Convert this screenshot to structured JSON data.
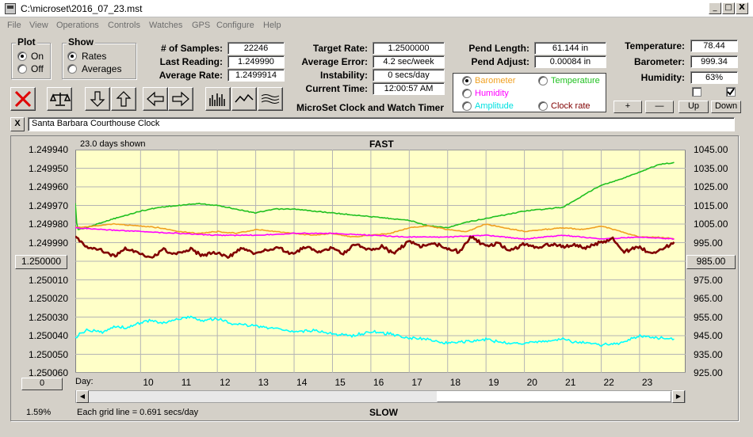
{
  "window": {
    "title": "C:\\microset\\2016_07_23.mst",
    "min": "_",
    "max": "□",
    "close": "X"
  },
  "menu": [
    "File",
    "View",
    "Operations",
    "Controls",
    "Watches",
    "GPS",
    "Configure",
    "Help"
  ],
  "plot_group": {
    "label": "Plot",
    "on": "On",
    "off": "Off"
  },
  "show_group": {
    "label": "Show",
    "rates": "Rates",
    "averages": "Averages"
  },
  "stats": {
    "samples_label": "# of Samples:",
    "samples": "22246",
    "last_label": "Last Reading:",
    "last": "1.249990",
    "avgrate_label": "Average Rate:",
    "avgrate": "1.2499914",
    "target_label": "Target Rate:",
    "target": "1.2500000",
    "avgerr_label": "Average Error:",
    "avgerr": "4.2 sec/week",
    "instab_label": "Instability:",
    "instab": "0 secs/day",
    "time_label": "Current Time:",
    "time": "12:00:57 AM",
    "pendlen_label": "Pend Length:",
    "pendlen": "61.144 in",
    "pendadj_label": "Pend Adjust:",
    "pendadj": "0.00084 in",
    "temp_label": "Temperature:",
    "temp": "78.44",
    "baro_label": "Barometer:",
    "baro": "999.34",
    "hum_label": "Humidity:",
    "hum": "63%"
  },
  "app_name": "MicroSet Clock and Watch Timer",
  "sensor_options": {
    "barometer": "Barometer",
    "temperature": "Temperature",
    "humidity": "Humidity",
    "amplitude": "Amplitude",
    "clockrate": "Clock rate"
  },
  "scale_buttons": {
    "plus": "+",
    "minus": "—",
    "up": "Up",
    "down": "Down"
  },
  "clock_name": "Santa Barbara Courthouse Clock",
  "clear_label": "X",
  "colors": {
    "barometer": "#f0a020",
    "temperature": "#20c020",
    "humidity": "#ff00ff",
    "amplitude": "#00ffff",
    "clockrate": "#800000"
  },
  "chart": {
    "days_shown": "23.0 days shown",
    "fast": "FAST",
    "slow": "SLOW",
    "grid_note": "Each grid line = 0.691 secs/day",
    "percent": "1.59%",
    "center_button": "1.250000",
    "right_center_button": "985.00",
    "bottom_left_button": "0",
    "day_label": "Day:"
  },
  "chart_data": {
    "type": "line",
    "left_axis": {
      "ticks": [
        "1.249940",
        "1.249950",
        "1.249960",
        "1.249970",
        "1.249980",
        "1.249990",
        "1.250000",
        "1.250010",
        "1.250020",
        "1.250030",
        "1.250040",
        "1.250050",
        "1.250060"
      ],
      "range": [
        1.24994,
        1.25006
      ]
    },
    "right_axis": {
      "ticks": [
        "1045.00",
        "1035.00",
        "1025.00",
        "1015.00",
        "1005.00",
        "995.00",
        "985.00",
        "975.00",
        "965.00",
        "955.00",
        "945.00",
        "935.00",
        "925.00"
      ],
      "range": [
        925,
        1045
      ]
    },
    "x_ticks": [
      "10",
      "11",
      "12",
      "13",
      "14",
      "15",
      "16",
      "17",
      "18",
      "19",
      "20",
      "21",
      "22",
      "23"
    ],
    "xlim": [
      8.3,
      24.2
    ],
    "series": [
      {
        "name": "Temperature",
        "color": "#20c020",
        "x": [
          8.3,
          8.35,
          8.6,
          9.0,
          9.5,
          10.0,
          10.5,
          11.0,
          11.5,
          12.0,
          12.5,
          13.0,
          13.5,
          14.0,
          14.5,
          15.0,
          15.5,
          16.0,
          16.5,
          17.0,
          17.5,
          18.0,
          18.5,
          19.0,
          19.5,
          20.0,
          20.5,
          21.0,
          21.5,
          22.0,
          22.5,
          23.0,
          23.5,
          23.9
        ],
        "y": [
          1016,
          1002,
          1003,
          1006,
          1009,
          1012,
          1014,
          1015,
          1016,
          1015,
          1013,
          1011,
          1013,
          1013,
          1012,
          1011,
          1010,
          1009,
          1008,
          1007,
          1004,
          1003,
          1006,
          1008,
          1010,
          1012,
          1013,
          1014,
          1020,
          1026,
          1029,
          1033,
          1037,
          1038
        ]
      },
      {
        "name": "Barometer",
        "color": "#f0a020",
        "x": [
          8.3,
          8.8,
          9.3,
          10.0,
          10.5,
          11.0,
          11.5,
          12.0,
          12.5,
          13.0,
          13.5,
          14.0,
          14.5,
          15.0,
          15.5,
          16.0,
          16.5,
          17.0,
          17.5,
          18.0,
          18.5,
          19.0,
          19.5,
          20.0,
          20.5,
          21.0,
          21.5,
          22.0,
          22.5,
          23.0,
          23.5,
          23.9
        ],
        "y": [
          1003,
          1004,
          1005,
          1004,
          1003,
          1001,
          1000,
          1001,
          1000,
          1002,
          1001,
          1000,
          999,
          1000,
          998,
          999,
          1000,
          1003,
          1004,
          1002,
          1001,
          1005,
          1003,
          1001,
          1002,
          1003,
          1002,
          1004,
          1001,
          998,
          998,
          997
        ]
      },
      {
        "name": "Humidity",
        "color": "#ff00ff",
        "x": [
          8.3,
          9.0,
          10.0,
          11.0,
          12.0,
          13.0,
          14.0,
          15.0,
          16.0,
          17.0,
          18.0,
          19.0,
          20.0,
          21.0,
          22.0,
          23.0,
          23.9
        ],
        "y": [
          1003,
          1002,
          1001,
          1000,
          999,
          999,
          1000,
          1000,
          999,
          998,
          998,
          999,
          997,
          999,
          997,
          998,
          997
        ]
      },
      {
        "name": "Clock rate",
        "color": "#800000",
        "x": [
          8.3,
          8.6,
          9.0,
          9.3,
          9.6,
          10.0,
          10.3,
          10.6,
          11.0,
          11.3,
          11.6,
          12.0,
          12.3,
          12.6,
          13.0,
          13.3,
          13.6,
          14.0,
          14.3,
          14.6,
          15.0,
          15.3,
          15.6,
          16.0,
          16.3,
          16.6,
          17.0,
          17.3,
          17.6,
          18.0,
          18.3,
          18.6,
          19.0,
          19.3,
          19.6,
          20.0,
          20.3,
          20.6,
          21.0,
          21.3,
          21.6,
          22.0,
          22.3,
          22.6,
          23.0,
          23.3,
          23.6,
          23.9
        ],
        "y": [
          1.249987,
          1.249992,
          1.249994,
          1.249997,
          1.249993,
          1.249996,
          1.249998,
          1.249994,
          1.249996,
          1.249993,
          1.249997,
          1.249995,
          1.249998,
          1.249993,
          1.249996,
          1.249994,
          1.249993,
          1.249996,
          1.249992,
          1.249995,
          1.249993,
          1.249996,
          1.249991,
          1.249994,
          1.249992,
          1.249996,
          1.249989,
          1.249992,
          1.24999,
          1.249993,
          1.249995,
          1.249987,
          1.249992,
          1.24999,
          1.249994,
          1.249991,
          1.249993,
          1.249991,
          1.249992,
          1.249991,
          1.249993,
          1.24999,
          1.249988,
          1.249995,
          1.249992,
          1.249996,
          1.249993,
          1.24999
        ]
      },
      {
        "name": "Amplitude",
        "color": "#00ffff",
        "x": [
          8.3,
          8.6,
          9.0,
          9.3,
          9.6,
          10.0,
          10.3,
          10.6,
          11.0,
          11.3,
          11.6,
          12.0,
          12.3,
          12.6,
          13.0,
          13.5,
          14.0,
          14.5,
          15.0,
          15.5,
          16.0,
          16.5,
          17.0,
          17.5,
          18.0,
          18.5,
          19.0,
          19.5,
          20.0,
          20.5,
          21.0,
          21.5,
          22.0,
          22.5,
          23.0,
          23.3,
          23.6,
          23.9
        ],
        "y": [
          944,
          948,
          947,
          950,
          949,
          952,
          953,
          952,
          954,
          955,
          953,
          954,
          952,
          951,
          950,
          949,
          947,
          948,
          946,
          945,
          947,
          946,
          944,
          943,
          941,
          942,
          943,
          941,
          941,
          942,
          943,
          941,
          940,
          941,
          945,
          944,
          944,
          943
        ]
      }
    ]
  }
}
